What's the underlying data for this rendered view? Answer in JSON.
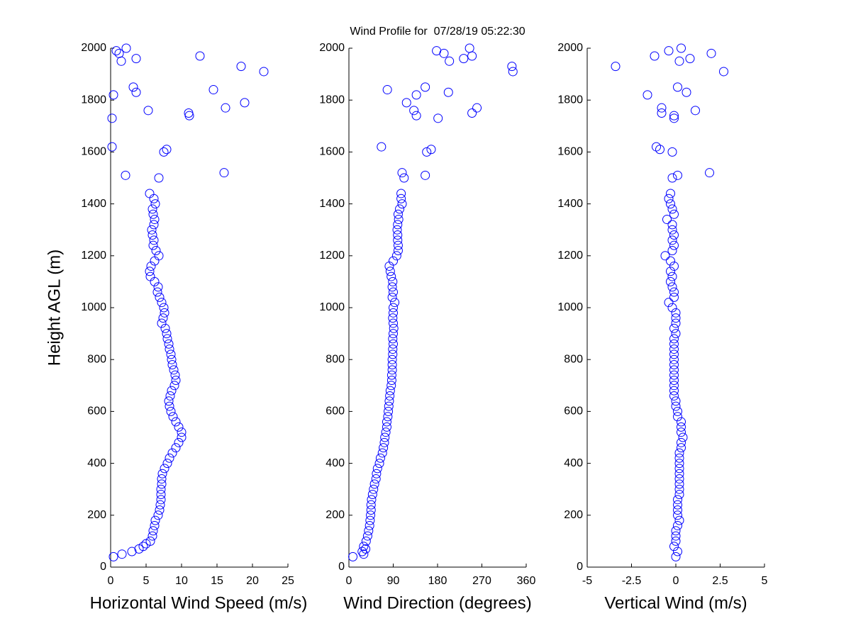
{
  "chart_data": [
    {
      "type": "scatter",
      "title": "Wind Profile for  07/28/19 05:22:30",
      "x_label": "Horizontal Wind Speed (m/s)",
      "y_label": "Height AGL (m)",
      "color": "#0000ff",
      "x": [
        0.4,
        1.6,
        3,
        4,
        4.6,
        5,
        5.6,
        5.9,
        6,
        6.2,
        6.3,
        6.7,
        6.9,
        7,
        7.1,
        7.1,
        7.1,
        7.2,
        7.2,
        7.3,
        7.6,
        8,
        8.3,
        8.7,
        9.2,
        9.6,
        10,
        10,
        9.6,
        9.2,
        8.8,
        8.5,
        8.3,
        8.2,
        8.4,
        8.6,
        9,
        9.2,
        9.1,
        8.9,
        8.7,
        8.6,
        8.5,
        8.3,
        8.2,
        8,
        7.9,
        7.7,
        7.2,
        7.4,
        7.6,
        7.5,
        7.2,
        6.9,
        6.6,
        6.7,
        6.2,
        5.6,
        5.5,
        5.7,
        6.2,
        6.8,
        6.4,
        6,
        6.1,
        5.9,
        5.8,
        6.1,
        6.2,
        6,
        5.9,
        6.3,
        6.1,
        5.5,
        6.8,
        2.1,
        16,
        7.5,
        7.9,
        0.2,
        0.2,
        11.1,
        11,
        5.3,
        16.2,
        18.9,
        0.4,
        3.6,
        14.5,
        3.2,
        21.6,
        18.4,
        1.5,
        3.6,
        12.6,
        1.2,
        0.8,
        2.2
      ],
      "values": [
        40,
        50,
        60,
        70,
        80,
        90,
        100,
        120,
        140,
        160,
        180,
        200,
        220,
        240,
        260,
        280,
        300,
        320,
        340,
        360,
        380,
        400,
        420,
        440,
        460,
        480,
        500,
        520,
        540,
        560,
        580,
        600,
        620,
        640,
        660,
        680,
        700,
        720,
        740,
        760,
        780,
        800,
        820,
        840,
        860,
        880,
        900,
        920,
        940,
        960,
        980,
        1000,
        1020,
        1040,
        1060,
        1080,
        1100,
        1120,
        1140,
        1160,
        1180,
        1200,
        1220,
        1240,
        1260,
        1280,
        1300,
        1320,
        1340,
        1360,
        1380,
        1400,
        1420,
        1440,
        1500,
        1510,
        1520,
        1600,
        1610,
        1620,
        1730,
        1740,
        1750,
        1760,
        1770,
        1790,
        1820,
        1830,
        1840,
        1850,
        1910,
        1930,
        1950,
        1960,
        1970,
        1980,
        1990,
        2000
      ],
      "xlim": [
        0,
        25
      ],
      "xticks": [
        0,
        5,
        10,
        15,
        20,
        25
      ],
      "ylim": [
        0,
        2000
      ],
      "yticks": [
        0,
        200,
        400,
        600,
        800,
        1000,
        1200,
        1400,
        1600,
        1800,
        2000
      ]
    },
    {
      "type": "scatter",
      "x_label": "Wind Direction (degrees)",
      "color": "#0000ff",
      "x": [
        8,
        30,
        27,
        34,
        30,
        35,
        38,
        40,
        42,
        43,
        44,
        45,
        45,
        46,
        48,
        50,
        52,
        55,
        56,
        58,
        62,
        64,
        68,
        70,
        72,
        73,
        75,
        77,
        77,
        79,
        80,
        81,
        82,
        83,
        84,
        86,
        87,
        87,
        88,
        88,
        88,
        89,
        89,
        90,
        89,
        90,
        91,
        90,
        89,
        90,
        90,
        93,
        88,
        90,
        88,
        89,
        86,
        84,
        82,
        90,
        97,
        100,
        100,
        99,
        99,
        98,
        99,
        101,
        100,
        103,
        108,
        106,
        106,
        112,
        155,
        108,
        158,
        167,
        66,
        181,
        137,
        250,
        132,
        260,
        117,
        137,
        202,
        78,
        155,
        333,
        331,
        204,
        233,
        250,
        193,
        178,
        245
      ],
      "values": [
        40,
        50,
        60,
        70,
        80,
        100,
        120,
        140,
        160,
        180,
        200,
        220,
        240,
        260,
        280,
        300,
        320,
        340,
        360,
        380,
        400,
        420,
        440,
        460,
        480,
        500,
        520,
        540,
        560,
        580,
        600,
        620,
        640,
        660,
        680,
        700,
        720,
        740,
        760,
        780,
        800,
        820,
        840,
        860,
        880,
        900,
        920,
        940,
        960,
        980,
        1000,
        1020,
        1040,
        1060,
        1080,
        1100,
        1120,
        1140,
        1160,
        1180,
        1200,
        1220,
        1240,
        1260,
        1280,
        1300,
        1320,
        1340,
        1360,
        1380,
        1400,
        1420,
        1440,
        1500,
        1510,
        1520,
        1600,
        1610,
        1620,
        1730,
        1740,
        1750,
        1760,
        1770,
        1790,
        1820,
        1830,
        1840,
        1850,
        1910,
        1930,
        1950,
        1960,
        1970,
        1980,
        1990,
        2000
      ],
      "xlim": [
        0,
        360
      ],
      "xticks": [
        0,
        90,
        180,
        270,
        360
      ],
      "ylim": [
        0,
        2000
      ],
      "yticks": [
        0,
        200,
        400,
        600,
        800,
        1000,
        1200,
        1400,
        1600,
        1800,
        2000
      ]
    },
    {
      "type": "scatter",
      "x_label": "Vertical Wind (m/s)",
      "color": "#0000ff",
      "x": [
        0,
        0.1,
        -0.1,
        0,
        0,
        0,
        0.1,
        0.2,
        0.1,
        0.1,
        0.1,
        0.1,
        0.2,
        0.2,
        0.2,
        0.2,
        0.2,
        0.2,
        0.2,
        0.2,
        0.2,
        0.3,
        0.3,
        0.4,
        0.3,
        0.3,
        0.3,
        0.1,
        0.1,
        0,
        0,
        -0.1,
        -0.1,
        -0.1,
        -0.1,
        -0.1,
        -0.1,
        -0.1,
        -0.1,
        -0.1,
        -0.1,
        -0.1,
        -0.1,
        0,
        -0.1,
        0,
        0,
        0,
        -0.2,
        -0.4,
        -0.1,
        -0.1,
        -0.2,
        -0.3,
        -0.2,
        -0.3,
        -0.1,
        -0.3,
        -0.6,
        -0.2,
        -0.1,
        -0.2,
        -0.1,
        -0.2,
        -0.2,
        -0.5,
        -0.1,
        -0.2,
        -0.3,
        -0.4,
        -0.3,
        -0.2,
        0.1,
        1.9,
        -0.2,
        -0.9,
        -1.1,
        -0.1,
        -0.1,
        -0.8,
        1.1,
        -0.8,
        -1.6,
        0.6,
        0.1,
        2.7,
        -3.4,
        0.2,
        0.8,
        -1.2,
        2.0,
        -0.4,
        0.3
      ],
      "values": [
        40,
        60,
        80,
        100,
        120,
        140,
        160,
        180,
        200,
        220,
        240,
        260,
        280,
        300,
        320,
        340,
        360,
        380,
        400,
        420,
        440,
        460,
        480,
        500,
        520,
        540,
        560,
        580,
        600,
        620,
        640,
        660,
        680,
        700,
        720,
        740,
        760,
        780,
        800,
        820,
        840,
        860,
        880,
        900,
        920,
        940,
        960,
        980,
        1000,
        1020,
        1040,
        1060,
        1080,
        1100,
        1120,
        1140,
        1160,
        1180,
        1200,
        1220,
        1240,
        1260,
        1280,
        1300,
        1320,
        1340,
        1360,
        1380,
        1400,
        1420,
        1440,
        1500,
        1510,
        1520,
        1600,
        1610,
        1620,
        1730,
        1740,
        1750,
        1760,
        1770,
        1820,
        1830,
        1850,
        1910,
        1930,
        1950,
        1960,
        1970,
        1980,
        1990,
        2000
      ],
      "xlim": [
        -5,
        5
      ],
      "xticks": [
        -5,
        -2.5,
        0,
        2.5,
        5
      ],
      "ylim": [
        0,
        2000
      ],
      "yticks": [
        0,
        200,
        400,
        600,
        800,
        1000,
        1200,
        1400,
        1600,
        1800,
        2000
      ]
    }
  ]
}
